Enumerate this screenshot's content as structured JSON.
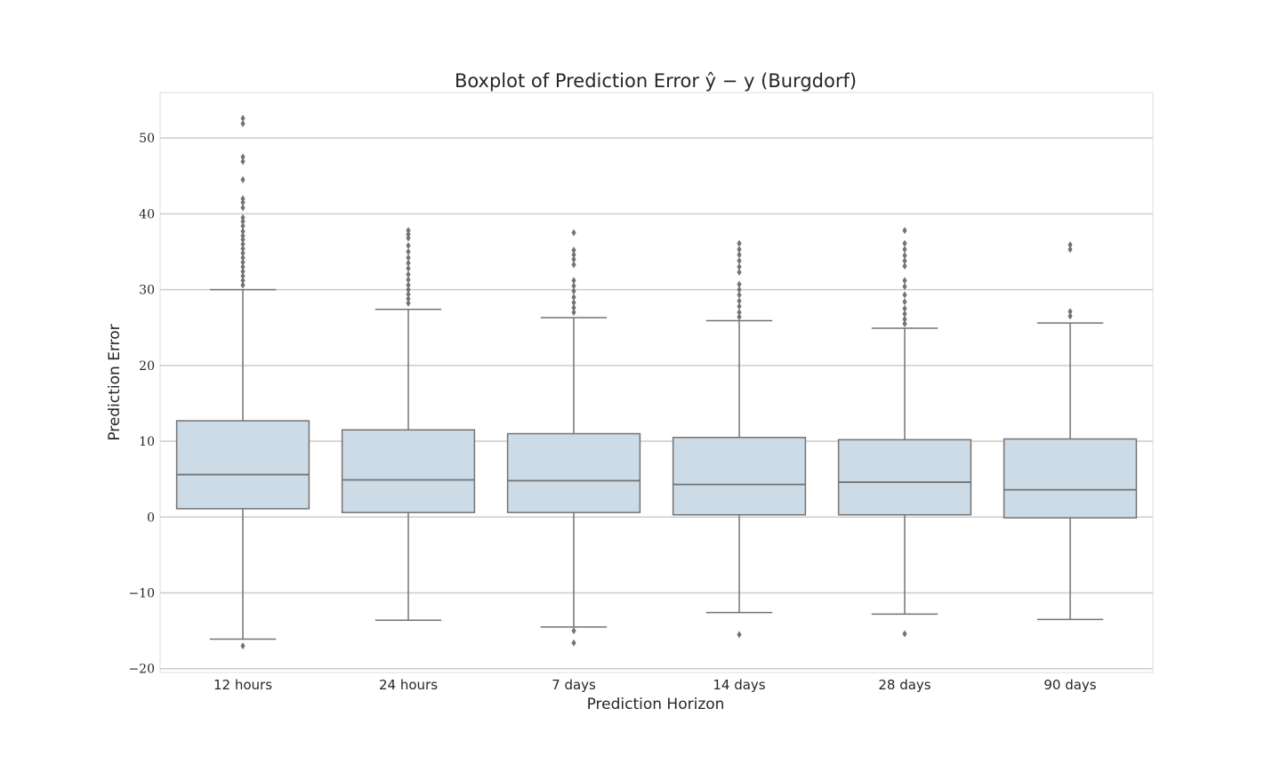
{
  "chart_data": {
    "type": "boxplot",
    "title": "Boxplot of Prediction Error ŷ − y (Burgdorf)",
    "xlabel": "Prediction Horizon",
    "ylabel": "Prediction Error",
    "ylim": [
      -20.5,
      56
    ],
    "yticks": [
      -20,
      -10,
      0,
      10,
      20,
      30,
      40,
      50
    ],
    "ytick_labels": [
      "−20",
      "−10",
      "0",
      "10",
      "20",
      "30",
      "40",
      "50"
    ],
    "grid": "horizontal",
    "colors": {
      "box_fill": "#cddbe7",
      "box_edge": "#737373",
      "outlier": "#737373",
      "grid": "#cccccc",
      "frame": "#dddddd"
    },
    "categories": [
      "12 hours",
      "24 hours",
      "7 days",
      "14 days",
      "28 days",
      "90 days"
    ],
    "boxes": [
      {
        "q1": 1.1,
        "median": 5.6,
        "q3": 12.7,
        "whisker_low": -16.1,
        "whisker_high": 30.0,
        "outliers": [
          52.6,
          51.9,
          47.5,
          46.9,
          44.5,
          42.0,
          41.5,
          40.8,
          39.5,
          39.0,
          38.4,
          37.7,
          37.1,
          36.6,
          36.0,
          35.4,
          34.8,
          34.2,
          33.6,
          33.0,
          32.4,
          31.8,
          31.2,
          30.6,
          -17.0
        ]
      },
      {
        "q1": 0.6,
        "median": 4.9,
        "q3": 11.5,
        "whisker_low": -13.6,
        "whisker_high": 27.4,
        "outliers": [
          37.8,
          37.3,
          36.8,
          35.8,
          35.0,
          34.2,
          33.5,
          32.8,
          32.0,
          31.3,
          30.6,
          30.0,
          29.4,
          28.8,
          28.2
        ]
      },
      {
        "q1": 0.6,
        "median": 4.8,
        "q3": 11.0,
        "whisker_low": -14.5,
        "whisker_high": 26.3,
        "outliers": [
          37.5,
          35.2,
          34.6,
          34.0,
          33.3,
          31.2,
          30.5,
          29.8,
          29.0,
          28.3,
          27.6,
          27.0,
          -15.0,
          -16.6
        ]
      },
      {
        "q1": 0.3,
        "median": 4.3,
        "q3": 10.5,
        "whisker_low": -12.6,
        "whisker_high": 25.9,
        "outliers": [
          36.1,
          35.3,
          34.6,
          33.8,
          33.0,
          32.3,
          30.7,
          30.0,
          29.3,
          28.5,
          27.8,
          27.0,
          26.4,
          -15.5
        ]
      },
      {
        "q1": 0.3,
        "median": 4.6,
        "q3": 10.2,
        "whisker_low": -12.8,
        "whisker_high": 24.9,
        "outliers": [
          37.8,
          36.1,
          35.3,
          34.5,
          33.8,
          33.1,
          31.2,
          30.4,
          29.3,
          28.4,
          27.5,
          26.8,
          26.1,
          25.5,
          -15.4
        ]
      },
      {
        "q1": -0.1,
        "median": 3.6,
        "q3": 10.3,
        "whisker_low": -13.5,
        "whisker_high": 25.6,
        "outliers": [
          35.9,
          35.3,
          27.1,
          26.5
        ]
      }
    ]
  }
}
